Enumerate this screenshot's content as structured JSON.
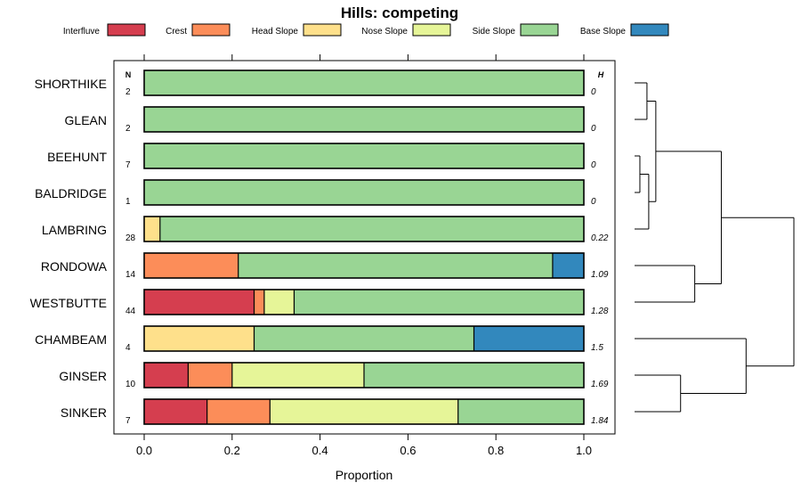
{
  "chart_data": {
    "type": "bar",
    "stacked": true,
    "orientation": "horizontal",
    "title": "Hills: competing",
    "xlabel": "Proportion",
    "ylabel": "",
    "xlim": [
      0,
      1
    ],
    "x_ticks": [
      "0.0",
      "0.2",
      "0.4",
      "0.6",
      "0.8",
      "1.0"
    ],
    "x_tick_values": [
      0,
      0.2,
      0.4,
      0.6,
      0.8,
      1.0
    ],
    "n_header": "N",
    "h_header": "H",
    "legend_position": "top",
    "legend": [
      {
        "name": "Interfluve",
        "color": "#D53E4F"
      },
      {
        "name": "Crest",
        "color": "#FC8D59"
      },
      {
        "name": "Head Slope",
        "color": "#FEE08B"
      },
      {
        "name": "Nose Slope",
        "color": "#E6F598"
      },
      {
        "name": "Side Slope",
        "color": "#99D594"
      },
      {
        "name": "Base Slope",
        "color": "#3288BD"
      }
    ],
    "categories": [
      "SHORTHIKE",
      "GLEAN",
      "BEEHUNT",
      "BALDRIDGE",
      "LAMBRING",
      "RONDOWA",
      "WESTBUTTE",
      "CHAMBEAM",
      "GINSER",
      "SINKER"
    ],
    "rows": [
      {
        "name": "SHORTHIKE",
        "n": "2",
        "h": "0",
        "values": [
          0,
          0,
          0,
          0,
          1,
          0
        ]
      },
      {
        "name": "GLEAN",
        "n": "2",
        "h": "0",
        "values": [
          0,
          0,
          0,
          0,
          1,
          0
        ]
      },
      {
        "name": "BEEHUNT",
        "n": "7",
        "h": "0",
        "values": [
          0,
          0,
          0,
          0,
          1,
          0
        ]
      },
      {
        "name": "BALDRIDGE",
        "n": "1",
        "h": "0",
        "values": [
          0,
          0,
          0,
          0,
          1,
          0
        ]
      },
      {
        "name": "LAMBRING",
        "n": "28",
        "h": "0.22",
        "values": [
          0,
          0,
          0.036,
          0,
          0.964,
          0
        ]
      },
      {
        "name": "RONDOWA",
        "n": "14",
        "h": "1.09",
        "values": [
          0,
          0.214,
          0,
          0,
          0.715,
          0.071
        ]
      },
      {
        "name": "WESTBUTTE",
        "n": "44",
        "h": "1.28",
        "values": [
          0.25,
          0.023,
          0,
          0.068,
          0.659,
          0
        ]
      },
      {
        "name": "CHAMBEAM",
        "n": "4",
        "h": "1.5",
        "values": [
          0,
          0,
          0.25,
          0,
          0.5,
          0.25
        ]
      },
      {
        "name": "GINSER",
        "n": "10",
        "h": "1.69",
        "values": [
          0.1,
          0.1,
          0,
          0.3,
          0.5,
          0
        ]
      },
      {
        "name": "SINKER",
        "n": "7",
        "h": "1.84",
        "values": [
          0.143,
          0.143,
          0,
          0.428,
          0.286,
          0
        ]
      }
    ],
    "dendrogram": {
      "leaves": [
        "SHORTHIKE",
        "GLEAN",
        "BEEHUNT",
        "BALDRIDGE",
        "LAMBRING",
        "RONDOWA",
        "WESTBUTTE",
        "CHAMBEAM",
        "GINSER",
        "SINKER"
      ],
      "merges": [
        {
          "a": "BEEHUNT",
          "b": "BALDRIDGE",
          "height": 0.03
        },
        {
          "a": "SHORTHIKE",
          "b": "GLEAN",
          "height": 0.07
        },
        {
          "a": "c0",
          "b": "LAMBRING",
          "height": 0.08
        },
        {
          "a": "c1",
          "b": "c2",
          "height": 0.12
        },
        {
          "a": "RONDOWA",
          "b": "WESTBUTTE",
          "height": 0.34
        },
        {
          "a": "c3",
          "b": "c4",
          "height": 0.49
        },
        {
          "a": "GINSER",
          "b": "SINKER",
          "height": 0.26
        },
        {
          "a": "CHAMBEAM",
          "b": "c6",
          "height": 0.63
        },
        {
          "a": "c5",
          "b": "c7",
          "height": 0.9
        }
      ]
    }
  }
}
